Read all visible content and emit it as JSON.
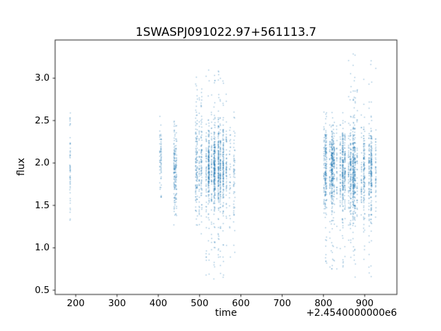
{
  "chart_data": {
    "type": "scatter",
    "title": "1SWASPJ091022.97+561113.7",
    "xlabel": "time",
    "ylabel": "flux",
    "x_offset_text": "+2.4540000000e6",
    "xlim": [
      150,
      978
    ],
    "ylim": [
      0.45,
      3.45
    ],
    "xticks": [
      200,
      300,
      400,
      500,
      600,
      700,
      800,
      900
    ],
    "xtick_labels": [
      "200",
      "300",
      "400",
      "500",
      "600",
      "700",
      "800",
      "900"
    ],
    "yticks": [
      0.5,
      1.0,
      1.5,
      2.0,
      2.5,
      3.0
    ],
    "ytick_labels": [
      "0.5",
      "1.0",
      "1.5",
      "2.0",
      "2.5",
      "3.0"
    ],
    "marker_color": "#1f77b4",
    "marker_alpha": 0.5,
    "grid": false,
    "legend": "none",
    "clusters": [
      {
        "x0": 186,
        "x1": 193,
        "n": 55,
        "mean": 1.95,
        "sd": 0.3,
        "min": 1.2,
        "max": 2.62,
        "outlier": 0.25,
        "gap": 3
      },
      {
        "x0": 403,
        "x1": 411,
        "n": 70,
        "mean": 2.05,
        "sd": 0.22,
        "min": 1.6,
        "max": 2.55,
        "outlier": 0.15,
        "gap": 3
      },
      {
        "x0": 433,
        "x1": 447,
        "n": 170,
        "mean": 1.95,
        "sd": 0.25,
        "min": 1.27,
        "max": 2.5,
        "outlier": 0.15,
        "gap": 3
      },
      {
        "x0": 489,
        "x1": 506,
        "n": 260,
        "mean": 2.0,
        "sd": 0.28,
        "min": 1.1,
        "max": 3.05,
        "outlier": 0.15,
        "gap": 3
      },
      {
        "x0": 516,
        "x1": 566,
        "n": 1050,
        "mean": 1.95,
        "sd": 0.24,
        "min": 0.6,
        "max": 3.1,
        "outlier": 0.13,
        "gap": 3
      },
      {
        "x0": 571,
        "x1": 590,
        "n": 90,
        "mean": 1.9,
        "sd": 0.35,
        "min": 0.85,
        "max": 2.6,
        "outlier": 0.2,
        "gap": 4
      },
      {
        "x0": 795,
        "x1": 858,
        "n": 950,
        "mean": 1.95,
        "sd": 0.24,
        "min": 0.7,
        "max": 2.6,
        "outlier": 0.12,
        "gap": 3
      },
      {
        "x0": 860,
        "x1": 941,
        "n": 1000,
        "mean": 1.9,
        "sd": 0.27,
        "min": 0.6,
        "max": 3.3,
        "outlier": 0.13,
        "gap": 3.5
      }
    ]
  }
}
